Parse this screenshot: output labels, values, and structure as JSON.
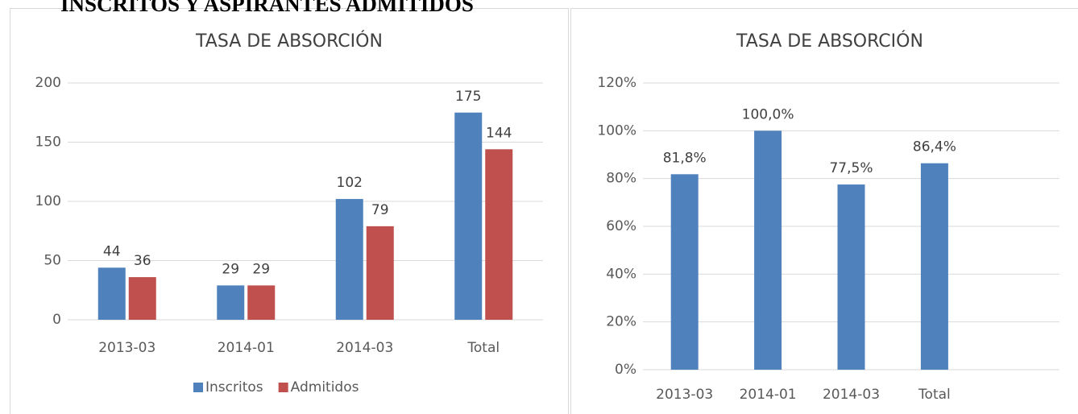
{
  "heading": "INSCRITOS Y ASPIRANTES ADMITIDOS",
  "chart_data": [
    {
      "type": "bar",
      "title": "TASA DE ABSORCIÓN",
      "categories": [
        "2013-03",
        "2014-01",
        "2014-03",
        "Total"
      ],
      "series": [
        {
          "name": "Inscritos",
          "color": "#4f81bd",
          "values": [
            44,
            29,
            102,
            175
          ]
        },
        {
          "name": "Admitidos",
          "color": "#c0504d",
          "values": [
            36,
            29,
            79,
            144
          ]
        }
      ],
      "ylim": [
        0,
        200
      ],
      "yticks": [
        0,
        50,
        100,
        150,
        200
      ],
      "grid": true,
      "legend": "bottom"
    },
    {
      "type": "bar",
      "title": "TASA DE ABSORCIÓN",
      "categories": [
        "2013-03",
        "2014-01",
        "2014-03",
        "Total",
        null
      ],
      "series": [
        {
          "color": "#4f81bd",
          "values": [
            81.8,
            100,
            77.5,
            86.4,
            null
          ],
          "value_labels": [
            "81,8%",
            "100,0%",
            "77,5%",
            "86,4%",
            null
          ]
        }
      ],
      "ylim": [
        0,
        120
      ],
      "yticks": [
        {
          "value": 0,
          "label": "0%"
        },
        {
          "value": 20,
          "label": "20%"
        },
        {
          "value": 40,
          "label": "40%"
        },
        {
          "value": 60,
          "label": "60%"
        },
        {
          "value": 80,
          "label": "80%"
        },
        {
          "value": 100,
          "label": "100%"
        },
        {
          "value": 120,
          "label": "120%"
        }
      ],
      "grid": true
    }
  ]
}
